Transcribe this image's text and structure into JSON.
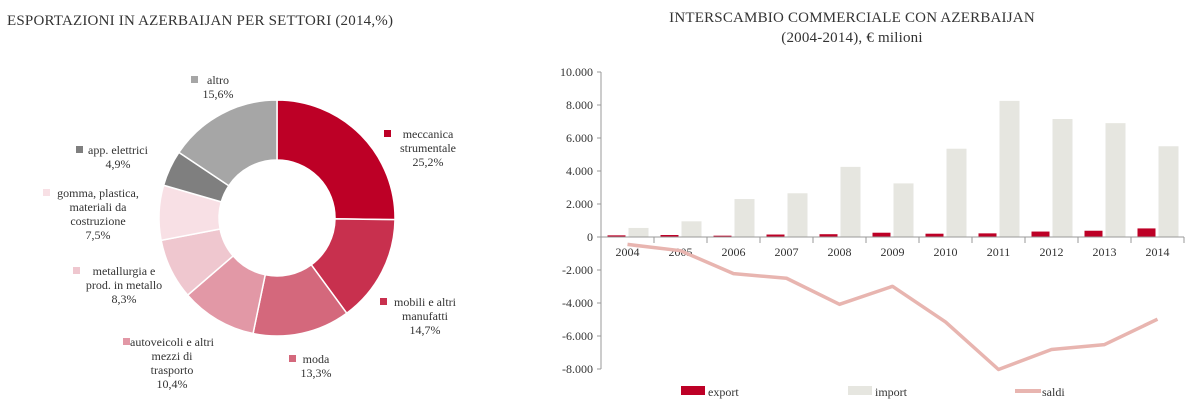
{
  "chart_data": [
    {
      "type": "pie",
      "variant": "donut",
      "title": "ESPORTAZIONI IN AZERBAIJAN PER SETTORI (2014,%)",
      "slices": [
        {
          "label_lines": [
            "meccanica",
            "strumentale"
          ],
          "value": 25.2,
          "value_label": "25,2%",
          "color": "#bd0026"
        },
        {
          "label_lines": [
            "mobili e altri",
            "manufatti"
          ],
          "value": 14.7,
          "value_label": "14,7%",
          "color": "#c8304e"
        },
        {
          "label_lines": [
            "moda"
          ],
          "value": 13.3,
          "value_label": "13,3%",
          "color": "#d4687c"
        },
        {
          "label_lines": [
            "autoveicoli e altri",
            "mezzi di",
            "trasporto"
          ],
          "value": 10.4,
          "value_label": "10,4%",
          "color": "#e298a6"
        },
        {
          "label_lines": [
            "metallurgia e",
            "prod. in metallo"
          ],
          "value": 8.3,
          "value_label": "8,3%",
          "color": "#efc7cf"
        },
        {
          "label_lines": [
            "gomma, plastica,",
            "materiali da",
            "costruzione"
          ],
          "value": 7.5,
          "value_label": "7,5%",
          "color": "#f8e0e5"
        },
        {
          "label_lines": [
            "app. elettrici"
          ],
          "value": 4.9,
          "value_label": "4,9%",
          "color": "#7f7f7f"
        },
        {
          "label_lines": [
            "altro"
          ],
          "value": 15.6,
          "value_label": "15,6%",
          "color": "#a6a6a6"
        }
      ]
    },
    {
      "type": "bar",
      "title_lines": [
        "INTERSCAMBIO COMMERCIALE CON AZERBAIJAN",
        "(2004-2014), € milioni"
      ],
      "categories": [
        "2004",
        "2005",
        "2006",
        "2007",
        "2008",
        "2009",
        "2010",
        "2011",
        "2012",
        "2013",
        "2014"
      ],
      "ylim": [
        -8000,
        10000
      ],
      "yticks": [
        10000,
        8000,
        6000,
        4000,
        2000,
        0,
        -2000,
        -4000,
        -6000,
        -8000
      ],
      "ytick_labels": [
        "10.000",
        "8.000",
        "6.000",
        "4.000",
        "2.000",
        "0",
        "-2.000",
        "-4.000",
        "-6.000",
        "-8.000"
      ],
      "series": [
        {
          "name": "export",
          "kind": "bar",
          "color": "#bd0026",
          "values": [
            100,
            120,
            80,
            150,
            170,
            260,
            200,
            220,
            330,
            380,
            520
          ]
        },
        {
          "name": "import",
          "kind": "bar",
          "color": "#e6e6e0",
          "values": [
            550,
            950,
            2300,
            2650,
            4250,
            3250,
            5350,
            8250,
            7150,
            6900,
            5500
          ]
        },
        {
          "name": "saldi",
          "kind": "line",
          "color": "#e8b5b0",
          "values": [
            -450,
            -830,
            -2220,
            -2500,
            -4080,
            -2990,
            -5150,
            -8030,
            -6820,
            -6520,
            -4980
          ]
        }
      ],
      "legend": [
        "export",
        "import",
        "saldi"
      ],
      "legend_position": "bottom"
    }
  ]
}
